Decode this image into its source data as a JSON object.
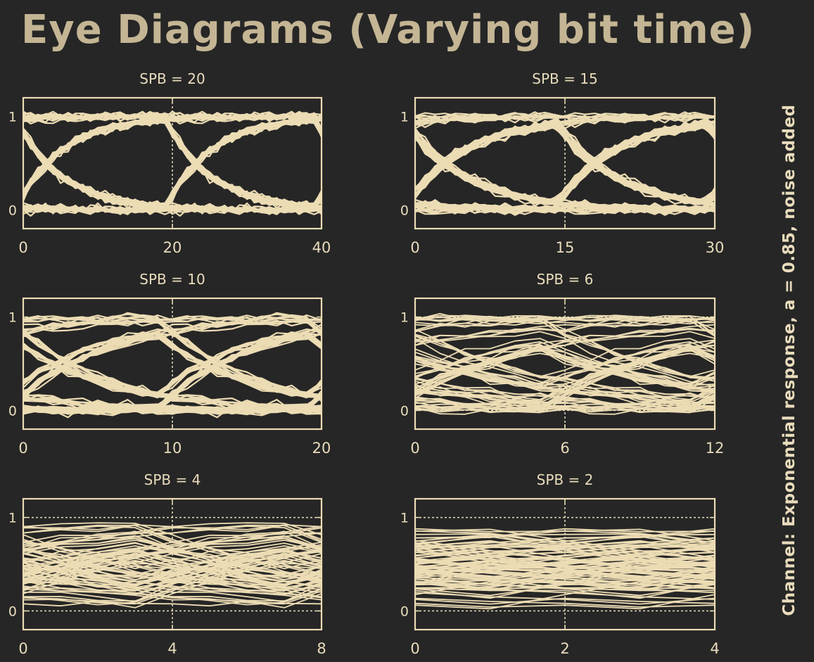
{
  "title": "Eye Diagrams (Varying bit time)",
  "side_label": "Channel: Exponential response,  a = 0.85,  noise added",
  "colors": {
    "background": "#262626",
    "trace": "#ecdcb4",
    "text": "#e9dcbc",
    "title": "#c4b594"
  },
  "chart_data": [
    {
      "type": "line",
      "title": "SPB = 20",
      "spb": 20,
      "xlim": [
        0,
        40
      ],
      "ylim": [
        -0.2,
        1.2
      ],
      "xticks": [
        0,
        20,
        40
      ],
      "yticks": [
        0,
        1
      ],
      "ytick_labels": [
        "0",
        "1"
      ],
      "alpha": 0.85,
      "noise": true,
      "grid_y": false
    },
    {
      "type": "line",
      "title": "SPB = 15",
      "spb": 15,
      "xlim": [
        0,
        30
      ],
      "ylim": [
        -0.2,
        1.2
      ],
      "xticks": [
        0,
        15,
        30
      ],
      "yticks": [
        0,
        1
      ],
      "ytick_labels": [
        "0",
        "1"
      ],
      "alpha": 0.85,
      "noise": true,
      "grid_y": false
    },
    {
      "type": "line",
      "title": "SPB = 10",
      "spb": 10,
      "xlim": [
        0,
        20
      ],
      "ylim": [
        -0.2,
        1.2
      ],
      "xticks": [
        0,
        10,
        20
      ],
      "yticks": [
        0,
        1
      ],
      "ytick_labels": [
        "0",
        "1"
      ],
      "alpha": 0.85,
      "noise": true,
      "grid_y": false
    },
    {
      "type": "line",
      "title": "SPB = 6",
      "spb": 6,
      "xlim": [
        0,
        12
      ],
      "ylim": [
        -0.2,
        1.2
      ],
      "xticks": [
        0,
        6,
        12
      ],
      "yticks": [
        0,
        1
      ],
      "ytick_labels": [
        "0",
        "1"
      ],
      "alpha": 0.85,
      "noise": true,
      "grid_y": true
    },
    {
      "type": "line",
      "title": "SPB = 4",
      "spb": 4,
      "xlim": [
        0,
        8
      ],
      "ylim": [
        -0.2,
        1.2
      ],
      "xticks": [
        0,
        4,
        8
      ],
      "yticks": [
        0,
        1
      ],
      "ytick_labels": [
        "0",
        "1"
      ],
      "alpha": 0.85,
      "noise": true,
      "grid_y": true
    },
    {
      "type": "line",
      "title": "SPB = 2",
      "spb": 2,
      "xlim": [
        0,
        4
      ],
      "ylim": [
        -0.2,
        1.2
      ],
      "xticks": [
        0,
        2,
        4
      ],
      "yticks": [
        0,
        1
      ],
      "ytick_labels": [
        "0",
        "1"
      ],
      "alpha": 0.85,
      "noise": true,
      "grid_y": true
    }
  ]
}
